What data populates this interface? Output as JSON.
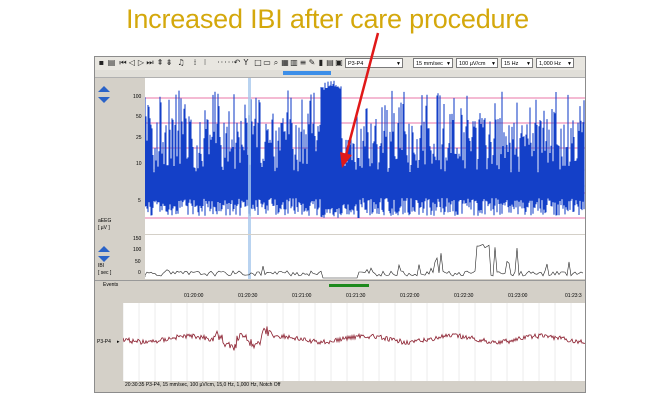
{
  "title": "Increased IBI after care procedure",
  "toolbar": {
    "channel": "P3-P4",
    "speed": "15 mm/sec",
    "sensitivity": "100 µV/cm",
    "highpass": "15 Hz",
    "lowpass": "1,000 Hz"
  },
  "aeeg": {
    "label": "aEEG",
    "unit": "[ µV ]",
    "ticks": [
      "100",
      "50",
      "25",
      "10",
      "5"
    ]
  },
  "ibi": {
    "label": "IBI",
    "unit": "[ sec ]",
    "ticks": [
      "150",
      "100",
      "50",
      "0"
    ]
  },
  "events": {
    "label": "Events"
  },
  "time_labels": [
    "01:20:00",
    "01:20:30",
    "01:21:00",
    "01:21:30",
    "01:22:00",
    "01:22:30",
    "01:23:00",
    "01:23:3"
  ],
  "eeg": {
    "channel_label": "P3-P4",
    "footer": "20:30:35 P3-P4, 15 mm/sec, 100 µV/cm, 15,0 Hz, 1,000 Hz, Notch Off"
  },
  "colors": {
    "title": "#d4a80c",
    "aeeg_trace": "#1440c8",
    "threshold_lines": "#e0488a",
    "annotation_arrow": "#e01818",
    "event_marker": "#1e8a1e",
    "scroll_thumb": "#3c8ee8"
  }
}
